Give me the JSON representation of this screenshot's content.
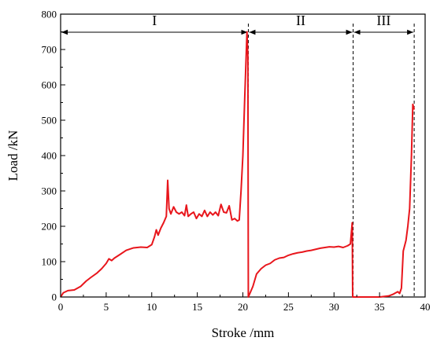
{
  "chart_data": {
    "type": "line",
    "xlabel": "Stroke /mm",
    "ylabel": "Load /kN",
    "xlim": [
      0,
      40
    ],
    "ylim": [
      0,
      800
    ],
    "x_ticks": [
      "0",
      "5",
      "10",
      "15",
      "20",
      "25",
      "30",
      "35",
      "40"
    ],
    "y_ticks": [
      "0",
      "100",
      "200",
      "300",
      "400",
      "500",
      "600",
      "700",
      "800"
    ],
    "grid": false,
    "line_color": "#e8161c",
    "phase_boundaries": [
      20.6,
      32.1,
      38.8
    ],
    "phases": [
      {
        "label": "I",
        "from": 0,
        "to": 20.6
      },
      {
        "label": "II",
        "from": 20.6,
        "to": 32.1
      },
      {
        "label": "III",
        "from": 32.1,
        "to": 38.8
      }
    ],
    "series": [
      {
        "points": [
          [
            0,
            0
          ],
          [
            0.3,
            12
          ],
          [
            0.8,
            18
          ],
          [
            1.5,
            20
          ],
          [
            2.2,
            30
          ],
          [
            2.8,
            45
          ],
          [
            3.3,
            55
          ],
          [
            4.0,
            68
          ],
          [
            4.5,
            80
          ],
          [
            5.0,
            95
          ],
          [
            5.3,
            108
          ],
          [
            5.6,
            103
          ],
          [
            5.9,
            110
          ],
          [
            6.5,
            120
          ],
          [
            7.2,
            132
          ],
          [
            8.0,
            139
          ],
          [
            8.8,
            141
          ],
          [
            9.5,
            140
          ],
          [
            10.0,
            148
          ],
          [
            10.3,
            170
          ],
          [
            10.5,
            190
          ],
          [
            10.7,
            175
          ],
          [
            11.0,
            195
          ],
          [
            11.3,
            210
          ],
          [
            11.6,
            228
          ],
          [
            11.75,
            330
          ],
          [
            11.9,
            250
          ],
          [
            12.1,
            235
          ],
          [
            12.4,
            255
          ],
          [
            12.7,
            240
          ],
          [
            13.0,
            235
          ],
          [
            13.3,
            240
          ],
          [
            13.6,
            230
          ],
          [
            13.8,
            260
          ],
          [
            14.0,
            228
          ],
          [
            14.3,
            235
          ],
          [
            14.6,
            240
          ],
          [
            14.9,
            222
          ],
          [
            15.2,
            235
          ],
          [
            15.5,
            228
          ],
          [
            15.8,
            245
          ],
          [
            16.1,
            228
          ],
          [
            16.4,
            240
          ],
          [
            16.7,
            232
          ],
          [
            17.0,
            240
          ],
          [
            17.3,
            230
          ],
          [
            17.6,
            262
          ],
          [
            17.9,
            240
          ],
          [
            18.2,
            238
          ],
          [
            18.5,
            258
          ],
          [
            18.8,
            218
          ],
          [
            19.1,
            222
          ],
          [
            19.4,
            215
          ],
          [
            19.6,
            218
          ],
          [
            19.8,
            300
          ],
          [
            20.0,
            400
          ],
          [
            20.2,
            560
          ],
          [
            20.45,
            750
          ],
          [
            20.55,
            680
          ],
          [
            20.6,
            0
          ],
          [
            20.8,
            12
          ],
          [
            21.1,
            30
          ],
          [
            21.5,
            65
          ],
          [
            22.0,
            80
          ],
          [
            22.5,
            90
          ],
          [
            23.0,
            95
          ],
          [
            23.5,
            105
          ],
          [
            24.0,
            110
          ],
          [
            24.5,
            112
          ],
          [
            25.0,
            118
          ],
          [
            25.5,
            122
          ],
          [
            26.0,
            125
          ],
          [
            26.5,
            127
          ],
          [
            27.0,
            130
          ],
          [
            27.5,
            132
          ],
          [
            28.0,
            135
          ],
          [
            28.5,
            138
          ],
          [
            29.0,
            140
          ],
          [
            29.5,
            142
          ],
          [
            30.0,
            141
          ],
          [
            30.5,
            143
          ],
          [
            31.0,
            140
          ],
          [
            31.5,
            145
          ],
          [
            31.8,
            150
          ],
          [
            32.0,
            210
          ],
          [
            32.05,
            0
          ],
          [
            33.0,
            0
          ],
          [
            34.0,
            0
          ],
          [
            35.0,
            0
          ],
          [
            36.0,
            3
          ],
          [
            36.5,
            8
          ],
          [
            37.0,
            15
          ],
          [
            37.2,
            10
          ],
          [
            37.4,
            25
          ],
          [
            37.6,
            130
          ],
          [
            37.9,
            160
          ],
          [
            38.1,
            200
          ],
          [
            38.3,
            250
          ],
          [
            38.5,
            400
          ],
          [
            38.65,
            545
          ],
          [
            38.8,
            530
          ]
        ]
      }
    ]
  }
}
